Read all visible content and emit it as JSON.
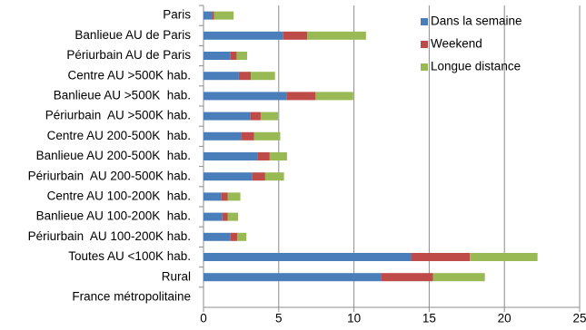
{
  "chart_data": {
    "type": "bar",
    "orientation": "horizontal",
    "stacked": true,
    "categories": [
      "Paris",
      "Banlieue AU de Paris",
      "Périurbain AU de Paris",
      "Centre AU >500K hab.",
      "Banlieue AU >500K  hab.",
      "Périurbain  AU >500K hab.",
      "Centre AU 200-500K  hab.",
      "Banlieue AU 200-500K  hab.",
      "Périurbain  AU 200-500K hab.",
      "Centre AU 100-200K  hab.",
      "Banlieue AU 100-200K  hab.",
      "Périurbain  AU 100-200K hab.",
      "Toutes AU <100K hab.",
      "Rural",
      "France métropolitaine"
    ],
    "series": [
      {
        "name": "Dans la semaine",
        "color": "#4a7ebb",
        "values": [
          0.55,
          5.3,
          1.8,
          2.35,
          5.55,
          3.1,
          2.5,
          3.6,
          3.25,
          1.2,
          1.25,
          1.8,
          13.8,
          11.8,
          null
        ]
      },
      {
        "name": "Weekend",
        "color": "#be4b48",
        "values": [
          0.15,
          1.6,
          0.4,
          0.8,
          1.9,
          0.7,
          0.85,
          0.8,
          0.85,
          0.4,
          0.35,
          0.45,
          3.9,
          3.45,
          null
        ]
      },
      {
        "name": "Longue distance",
        "color": "#98b954",
        "values": [
          1.3,
          3.9,
          0.7,
          1.6,
          2.5,
          1.15,
          1.75,
          1.15,
          1.25,
          0.85,
          0.7,
          0.6,
          4.5,
          3.45,
          null
        ]
      }
    ],
    "xlim": [
      0,
      25
    ],
    "xticks": [
      0,
      5,
      10,
      15,
      20,
      25
    ],
    "grid": true,
    "legend": "top-right"
  }
}
